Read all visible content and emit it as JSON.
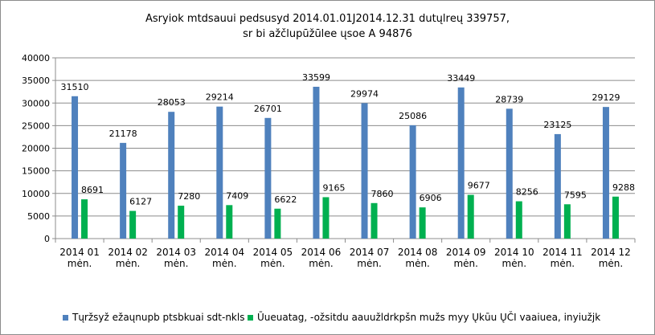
{
  "chart_data": {
    "type": "bar",
    "title_line1": "Asryiok mtdsauui pedsusyd 2014.01.01J2014.12.31 dutųlrеų  339757,",
    "title_line2": "sr bi ažčlupūžūlee ųsoe A 94876",
    "categories": [
      [
        "2014 01",
        "mėn."
      ],
      [
        "2014 02",
        "mėn."
      ],
      [
        "2014 03",
        "mėn."
      ],
      [
        "2014 04",
        "mėn."
      ],
      [
        "2014 05",
        "mėn."
      ],
      [
        "2014 06",
        "mėn."
      ],
      [
        "2014 07",
        "mėn."
      ],
      [
        "2014 08",
        "mėn."
      ],
      [
        "2014 09",
        "mėn."
      ],
      [
        "2014 10",
        "mėn."
      ],
      [
        "2014 11",
        "mėn."
      ],
      [
        "2014 12",
        "mėn."
      ]
    ],
    "series": [
      {
        "name": "Tųržsyž ežaųnupb ptsbkuai sdt-nkls",
        "color": "#4f81bd",
        "values": [
          31510,
          21178,
          28053,
          29214,
          26701,
          33599,
          29974,
          25086,
          33449,
          28739,
          23125,
          29129
        ]
      },
      {
        "name": "Ūueuatag, -ožsitdu aauužldrkpšn mužs myy Ųkūu ŲČI vaaiuea, inyiužjk",
        "color": "#00b050",
        "values": [
          8691,
          6127,
          7280,
          7409,
          6622,
          9165,
          7860,
          6906,
          9677,
          8256,
          7595,
          9288
        ]
      }
    ],
    "ylim": [
      0,
      40000
    ],
    "yticks": [
      "0",
      "5000",
      "10000",
      "15000",
      "20000",
      "25000",
      "30000",
      "35000",
      "40000"
    ],
    "grid": true,
    "legend_position": "bottom"
  }
}
